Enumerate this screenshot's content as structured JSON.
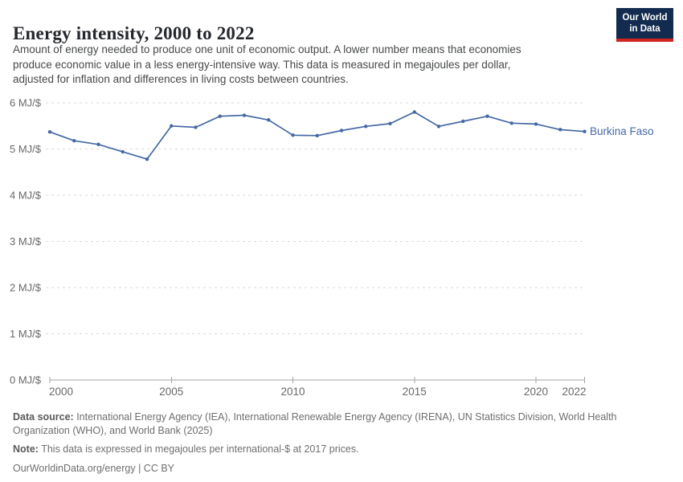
{
  "header": {
    "title": "Energy intensity, 2000 to 2022",
    "logo": {
      "line1": "Our World",
      "line2": "in Data"
    }
  },
  "subtitle": {
    "lines": [
      "Amount of energy needed to produce one unit of economic output. A lower number means that economies",
      "produce economic value in a less energy-intensive way. This data is measured in megajoules per dollar,",
      "adjusted for inflation and differences in living costs between countries."
    ]
  },
  "chart_data": {
    "type": "line",
    "title": "Energy intensity, 2000 to 2022",
    "xlabel": "",
    "ylabel": "MJ/$",
    "ylim": [
      0,
      6
    ],
    "y_ticks": [
      0,
      1,
      2,
      3,
      4,
      5,
      6
    ],
    "y_tick_suffix": " MJ/$",
    "x_ticks": [
      2000,
      2005,
      2010,
      2015,
      2020,
      2022
    ],
    "grid": "horizontal-dashed",
    "legend_position": "end-of-line-label",
    "x": [
      2000,
      2001,
      2002,
      2003,
      2004,
      2005,
      2006,
      2007,
      2008,
      2009,
      2010,
      2011,
      2012,
      2013,
      2014,
      2015,
      2016,
      2017,
      2018,
      2019,
      2020,
      2021,
      2022
    ],
    "series": [
      {
        "name": "Burkina Faso",
        "color": "#4568a5",
        "values": [
          5.37,
          5.18,
          5.1,
          4.94,
          4.78,
          5.5,
          5.47,
          5.71,
          5.73,
          5.63,
          5.3,
          5.29,
          5.4,
          5.49,
          5.55,
          5.8,
          5.49,
          5.6,
          5.71,
          5.56,
          5.54,
          5.42,
          5.38
        ]
      }
    ]
  },
  "footer": {
    "datasource_label": "Data source:",
    "datasource_line1_rest": " International Energy Agency (IEA), International Renewable Energy Agency (IRENA), UN Statistics Division, World Health",
    "datasource_line2": "Organization (WHO), and World Bank (2025)",
    "note_label": "Note:",
    "note_rest": " This data is expressed in megajoules per international-$ at 2017 prices.",
    "link": "OurWorldinData.org/energy | CC BY"
  },
  "colors": {
    "line": "#4568a5",
    "grid": "#d9d9d9",
    "axis": "#a3a3a3",
    "tick_text": "#67686a",
    "logo_bg": "#122b4e",
    "logo_bar": "#cf2420"
  }
}
